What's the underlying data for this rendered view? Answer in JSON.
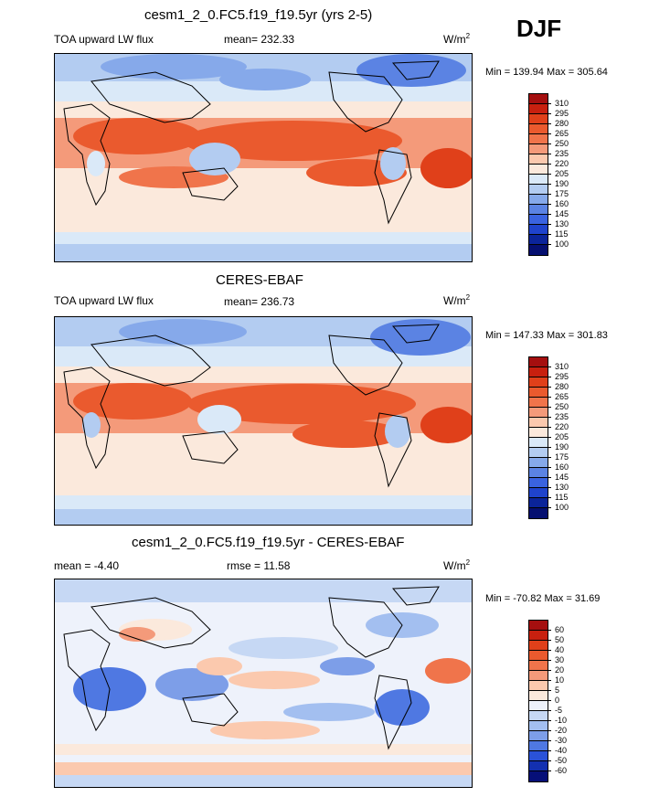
{
  "season": "DJF",
  "colors": {
    "land_outline": "#000000",
    "background": "#fbe9dc"
  },
  "chart_data": [
    {
      "type": "heatmap",
      "title": "cesm1_2_0.FC5.f19_f19.5yr (yrs 2-5)",
      "left_label": "TOA upward LW flux",
      "center_label": "mean= 232.33",
      "units_base": "W/m",
      "units_exp": "2",
      "minmax_label": "Min = 139.94 Max = 305.64",
      "min": 139.94,
      "max": 305.64,
      "mean": 232.33,
      "colorbar_levels": [
        "310",
        "295",
        "280",
        "265",
        "250",
        "235",
        "220",
        "205",
        "190",
        "175",
        "160",
        "145",
        "130",
        "115",
        "100"
      ],
      "colorbar_colors": [
        "#a50f0f",
        "#c8200f",
        "#e0401a",
        "#ea5a2e",
        "#f0744b",
        "#f49a7a",
        "#fbc9ae",
        "#fbe9dc",
        "#dae9f8",
        "#b3ccf1",
        "#86a9ea",
        "#5b83e3",
        "#3a63e0",
        "#1f43cc",
        "#0b2499",
        "#050f70"
      ]
    },
    {
      "type": "heatmap",
      "title": "CERES-EBAF",
      "left_label": "TOA upward LW flux",
      "center_label": "mean= 236.73",
      "units_base": "W/m",
      "units_exp": "2",
      "minmax_label": "Min = 147.33 Max = 301.83",
      "min": 147.33,
      "max": 301.83,
      "mean": 236.73,
      "colorbar_levels": [
        "310",
        "295",
        "280",
        "265",
        "250",
        "235",
        "220",
        "205",
        "190",
        "175",
        "160",
        "145",
        "130",
        "115",
        "100"
      ],
      "colorbar_colors": [
        "#a50f0f",
        "#c8200f",
        "#e0401a",
        "#ea5a2e",
        "#f0744b",
        "#f49a7a",
        "#fbc9ae",
        "#fbe9dc",
        "#dae9f8",
        "#b3ccf1",
        "#86a9ea",
        "#5b83e3",
        "#3a63e0",
        "#1f43cc",
        "#0b2499",
        "#050f70"
      ]
    },
    {
      "type": "heatmap",
      "title": "cesm1_2_0.FC5.f19_f19.5yr - CERES-EBAF",
      "left_label": "mean =  -4.40",
      "center_label": "rmse =  11.58",
      "units_base": "W/m",
      "units_exp": "2",
      "minmax_label": "Min = -70.82 Max =  31.69",
      "min": -70.82,
      "max": 31.69,
      "mean": -4.4,
      "rmse": 11.58,
      "colorbar_levels": [
        "60",
        "50",
        "40",
        "30",
        "20",
        "10",
        "5",
        "0",
        "-5",
        "-10",
        "-20",
        "-30",
        "-40",
        "-50",
        "-60"
      ],
      "colorbar_colors": [
        "#a50f0f",
        "#c8200f",
        "#e0401a",
        "#ea5a2e",
        "#f0744b",
        "#f49a7a",
        "#fbc9ae",
        "#fbe9dc",
        "#eef2fb",
        "#c6d8f4",
        "#a3bff0",
        "#7d9ee8",
        "#4f78e2",
        "#2a52d8",
        "#1330b0",
        "#060f78"
      ]
    }
  ]
}
